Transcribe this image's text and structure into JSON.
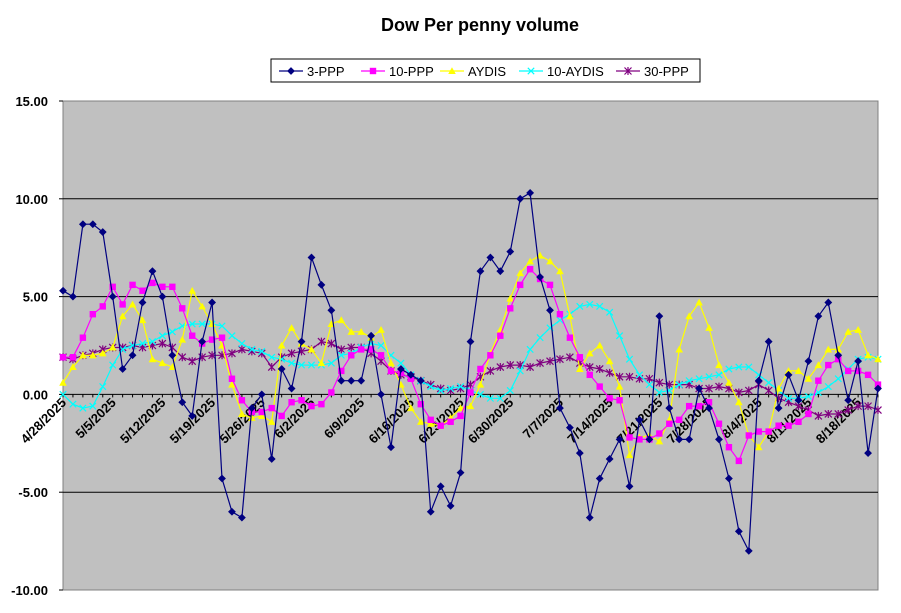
{
  "chart_data": {
    "type": "line",
    "title": "Dow Per penny volume",
    "ylim": [
      -10,
      15
    ],
    "yticks": [
      "15.00",
      "10.00",
      "5.00",
      "0.00",
      "-5.00",
      "-10.00"
    ],
    "ytick_values": [
      15,
      10,
      5,
      0,
      -5,
      -10
    ],
    "x_range": [
      0,
      82
    ],
    "xtick_labels": [
      "4/28/2025",
      "5/5/2025",
      "5/12/2025",
      "5/19/2025",
      "5/26/2025",
      "6/2/2025",
      "6/9/2025",
      "6/16/2025",
      "6/23/2025",
      "6/30/2025",
      "7/7/2025",
      "7/14/2025",
      "7/21/2025",
      "7/28/2025",
      "8/4/2025",
      "8/11/2025",
      "8/18/2025"
    ],
    "xtick_positions": [
      0,
      5,
      10,
      15,
      20,
      25,
      30,
      35,
      40,
      45,
      50,
      55,
      60,
      65,
      70,
      75,
      80
    ],
    "grid": "horizontal",
    "legend_position": "top-center",
    "colors": {
      "plot_background": "#c0c0c0",
      "gridline": "#000000",
      "3-PPP": "#000080",
      "10-PPP": "#ff00ff",
      "AYDIS": "#ffff00",
      "10-AYDIS": "#00ffff",
      "30-PPP": "#800080"
    },
    "series": [
      {
        "name": "3-PPP",
        "marker": "diamond",
        "x": [
          0,
          1,
          2,
          3,
          4,
          5,
          6,
          7,
          8,
          9,
          10,
          11,
          12,
          13,
          14,
          15,
          16,
          17,
          18,
          19,
          20,
          21,
          22,
          23,
          24,
          25,
          26,
          27,
          28,
          29,
          30,
          31,
          32,
          33,
          34,
          35,
          36,
          37,
          38,
          39,
          40,
          41,
          42,
          43,
          44,
          45,
          46,
          47,
          48,
          49,
          50,
          51,
          52,
          53,
          54,
          55,
          56,
          57,
          58,
          59,
          60,
          61,
          62,
          63,
          64,
          65,
          66,
          67,
          68,
          69,
          70,
          71,
          72,
          73,
          74,
          75,
          76,
          77,
          78,
          79,
          80,
          81,
          82
        ],
        "values": [
          5.3,
          5.0,
          8.7,
          8.7,
          8.3,
          5.0,
          1.3,
          2.0,
          4.7,
          6.3,
          5.0,
          2.0,
          -0.4,
          -1.1,
          2.7,
          4.7,
          -4.3,
          -6.0,
          -6.3,
          -0.7,
          0.0,
          -3.3,
          1.3,
          0.3,
          2.7,
          7.0,
          5.6,
          4.3,
          0.7,
          0.7,
          0.7,
          3.0,
          0.0,
          -2.7,
          1.3,
          1.0,
          0.7,
          -6.0,
          -4.7,
          -5.7,
          -4.0,
          2.7,
          6.3,
          7.0,
          6.3,
          7.3,
          10.0,
          10.3,
          6.0,
          4.3,
          -0.7,
          -1.7,
          -3.0,
          -6.3,
          -4.3,
          -3.3,
          -2.3,
          -4.7,
          -1.3,
          -2.3,
          4.0,
          -0.7,
          -2.3,
          -2.3,
          0.3,
          -0.7,
          -2.3,
          -4.3,
          -7.0,
          -8.0,
          0.7,
          2.7,
          -0.7,
          1.0,
          -0.3,
          1.7,
          4.0,
          4.7,
          2.0,
          -0.3,
          1.7,
          -3.0,
          0.3
        ]
      },
      {
        "name": "10-PPP",
        "marker": "square",
        "x": [
          0,
          1,
          2,
          3,
          4,
          5,
          6,
          7,
          8,
          9,
          10,
          11,
          12,
          13,
          14,
          15,
          16,
          17,
          18,
          19,
          20,
          21,
          22,
          23,
          24,
          25,
          26,
          27,
          28,
          29,
          30,
          31,
          32,
          33,
          34,
          35,
          36,
          37,
          38,
          39,
          40,
          41,
          42,
          43,
          44,
          45,
          46,
          47,
          48,
          49,
          50,
          51,
          52,
          53,
          54,
          55,
          56,
          57,
          58,
          59,
          60,
          61,
          62,
          63,
          64,
          65,
          66,
          67,
          68,
          69,
          70,
          71,
          72,
          73,
          74,
          75,
          76,
          77,
          78,
          79,
          80,
          81,
          82
        ],
        "values": [
          1.9,
          1.9,
          2.9,
          4.1,
          4.5,
          5.5,
          4.6,
          5.6,
          5.3,
          5.7,
          5.5,
          5.5,
          4.4,
          3.0,
          2.6,
          2.8,
          2.9,
          0.8,
          -0.3,
          -0.9,
          -0.9,
          -0.7,
          -1.1,
          -0.4,
          -0.3,
          -0.6,
          -0.5,
          0.1,
          1.2,
          2.0,
          2.3,
          2.3,
          2.0,
          1.2,
          1.1,
          0.8,
          -0.5,
          -1.3,
          -1.6,
          -1.4,
          -1.1,
          0.1,
          1.3,
          2.0,
          3.0,
          4.4,
          5.6,
          6.4,
          5.9,
          5.6,
          4.1,
          2.9,
          1.9,
          1.0,
          0.4,
          -0.2,
          -0.3,
          -2.2,
          -2.3,
          -2.3,
          -2.0,
          -1.5,
          -1.3,
          -0.6,
          -0.6,
          -0.4,
          -1.5,
          -2.7,
          -3.4,
          -2.1,
          -1.9,
          -1.9,
          -1.6,
          -1.6,
          -1.4,
          -1.0,
          0.7,
          1.5,
          1.8,
          1.2,
          1.2,
          1.0,
          0.5
        ]
      },
      {
        "name": "AYDIS",
        "marker": "triangle",
        "x": [
          0,
          1,
          2,
          3,
          4,
          5,
          6,
          7,
          8,
          9,
          10,
          11,
          12,
          13,
          14,
          15,
          16,
          17,
          18,
          19,
          20,
          21,
          22,
          23,
          24,
          25,
          26,
          27,
          28,
          29,
          30,
          31,
          32,
          33,
          34,
          35,
          36,
          37,
          38,
          39,
          40,
          41,
          42,
          43,
          44,
          45,
          46,
          47,
          48,
          49,
          50,
          51,
          52,
          53,
          54,
          55,
          56,
          57,
          58,
          59,
          60,
          61,
          62,
          63,
          64,
          65,
          66,
          67,
          68,
          69,
          70,
          71,
          72,
          73,
          74,
          75,
          76,
          77,
          78,
          79,
          80,
          81,
          82
        ],
        "values": [
          0.6,
          1.4,
          2.0,
          2.0,
          2.1,
          2.4,
          4.0,
          4.6,
          3.8,
          1.8,
          1.6,
          1.4,
          2.8,
          5.3,
          4.5,
          3.6,
          2.5,
          0.5,
          -1.0,
          -1.2,
          -1.1,
          -1.4,
          2.5,
          3.4,
          2.6,
          2.3,
          1.6,
          3.6,
          3.8,
          3.2,
          3.2,
          2.9,
          3.3,
          1.6,
          0.5,
          -0.7,
          -1.4,
          -1.5,
          -1.6,
          -1.2,
          -0.7,
          -0.6,
          0.5,
          2.1,
          3.3,
          4.9,
          6.2,
          6.8,
          7.1,
          6.8,
          6.3,
          4.0,
          1.3,
          2.1,
          2.5,
          1.7,
          0.4,
          -3.1,
          -2.2,
          -2.1,
          -2.4,
          -1.3,
          2.3,
          4.0,
          4.7,
          3.4,
          1.5,
          0.6,
          -0.4,
          -2.1,
          -2.7,
          -1.9,
          0.3,
          1.2,
          1.2,
          0.8,
          1.5,
          2.3,
          2.3,
          3.2,
          3.3,
          2.0,
          1.8
        ]
      },
      {
        "name": "10-AYDIS",
        "marker": "x",
        "x": [
          0,
          1,
          2,
          3,
          4,
          5,
          6,
          7,
          8,
          9,
          10,
          11,
          12,
          13,
          14,
          15,
          16,
          17,
          18,
          19,
          20,
          21,
          22,
          23,
          24,
          25,
          26,
          27,
          28,
          29,
          30,
          31,
          32,
          33,
          34,
          35,
          36,
          37,
          38,
          39,
          40,
          41,
          42,
          43,
          44,
          45,
          46,
          47,
          48,
          49,
          50,
          51,
          52,
          53,
          54,
          55,
          56,
          57,
          58,
          59,
          60,
          61,
          62,
          63,
          64,
          65,
          66,
          67,
          68,
          69,
          70,
          71,
          72,
          73,
          74,
          75,
          76,
          77,
          78,
          79,
          80,
          81,
          82
        ],
        "values": [
          0.0,
          -0.5,
          -0.7,
          -0.6,
          0.4,
          1.5,
          2.3,
          2.5,
          2.6,
          2.7,
          3.0,
          3.2,
          3.5,
          3.6,
          3.6,
          3.6,
          3.5,
          3.0,
          2.6,
          2.3,
          2.2,
          1.9,
          1.8,
          1.6,
          1.5,
          1.5,
          1.5,
          1.6,
          2.0,
          2.1,
          2.4,
          2.6,
          2.5,
          2.0,
          1.6,
          1.0,
          0.7,
          0.4,
          0.2,
          0.3,
          0.4,
          0.2,
          0.0,
          -0.2,
          -0.2,
          0.2,
          1.2,
          2.3,
          2.9,
          3.4,
          3.8,
          4.1,
          4.5,
          4.6,
          4.5,
          4.2,
          3.0,
          1.8,
          1.0,
          0.5,
          0.1,
          0.2,
          0.5,
          0.7,
          0.8,
          0.9,
          1.0,
          1.3,
          1.4,
          1.4,
          1.0,
          0.6,
          0.2,
          -0.2,
          -0.2,
          -0.1,
          0.1,
          0.4,
          0.8,
          1.3,
          1.8,
          1.9,
          1.8
        ]
      },
      {
        "name": "30-PPP",
        "marker": "asterisk",
        "x": [
          0,
          1,
          2,
          3,
          4,
          5,
          6,
          7,
          8,
          9,
          10,
          11,
          12,
          13,
          14,
          15,
          16,
          17,
          18,
          19,
          20,
          21,
          22,
          23,
          24,
          25,
          26,
          27,
          28,
          29,
          30,
          31,
          32,
          33,
          34,
          35,
          36,
          37,
          38,
          39,
          40,
          41,
          42,
          43,
          44,
          45,
          46,
          47,
          48,
          49,
          50,
          51,
          52,
          53,
          54,
          55,
          56,
          57,
          58,
          59,
          60,
          61,
          62,
          63,
          64,
          65,
          66,
          67,
          68,
          69,
          70,
          71,
          72,
          73,
          74,
          75,
          76,
          77,
          78,
          79,
          80,
          81,
          82
        ],
        "values": [
          1.9,
          1.8,
          2.0,
          2.1,
          2.3,
          2.4,
          2.4,
          2.5,
          2.4,
          2.5,
          2.6,
          2.4,
          1.9,
          1.7,
          1.9,
          2.0,
          2.0,
          2.1,
          2.3,
          2.2,
          2.1,
          1.4,
          1.9,
          2.1,
          2.2,
          2.3,
          2.7,
          2.6,
          2.3,
          2.4,
          2.4,
          2.1,
          1.7,
          1.2,
          1.0,
          0.9,
          0.7,
          0.5,
          0.3,
          0.2,
          0.3,
          0.5,
          0.9,
          1.2,
          1.4,
          1.5,
          1.5,
          1.4,
          1.6,
          1.7,
          1.8,
          1.9,
          1.6,
          1.4,
          1.3,
          1.1,
          0.9,
          0.9,
          0.8,
          0.8,
          0.6,
          0.5,
          0.5,
          0.5,
          0.3,
          0.3,
          0.4,
          0.3,
          0.1,
          0.2,
          0.5,
          0.2,
          -0.2,
          -0.4,
          -0.6,
          -0.8,
          -1.1,
          -1.0,
          -1.0,
          -0.8,
          -0.6,
          -0.6,
          -0.8
        ]
      }
    ]
  }
}
